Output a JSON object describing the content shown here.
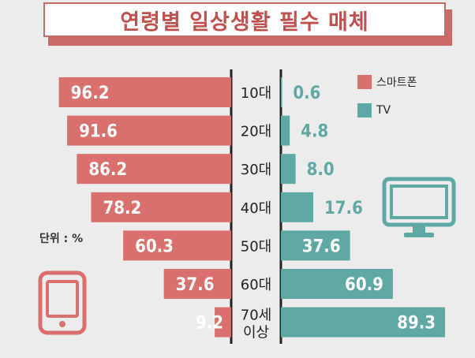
{
  "title": "연령별 일상생활 필수 매체",
  "unit": "단위 : %",
  "colors": {
    "smartphone": "#d9706d",
    "tv": "#5fa8a4",
    "title": "#c0504d"
  },
  "icons": {
    "smartphone": "smartphone-icon",
    "tv": "tv-icon"
  },
  "legend": {
    "smartphone": "스마트폰",
    "tv": "TV"
  },
  "chart_data": {
    "type": "bar",
    "title": "연령별 일상생활 필수 매체",
    "unit": "단위 : %",
    "categories": [
      "10대",
      "20대",
      "30대",
      "40대",
      "50대",
      "60대",
      "70세 이상"
    ],
    "series": [
      {
        "name": "스마트폰",
        "values": [
          96.2,
          91.6,
          86.2,
          78.2,
          60.3,
          37.6,
          9.2
        ]
      },
      {
        "name": "TV",
        "values": [
          0.6,
          4.8,
          8.0,
          17.6,
          37.6,
          60.9,
          89.3
        ]
      }
    ],
    "value_labels": {
      "스마트폰": [
        "96.2",
        "91.6",
        "86.2",
        "78.2",
        "60.3",
        "37.6",
        "9.2"
      ],
      "TV": [
        "0.6",
        "4.8",
        "8.0",
        "17.6",
        "37.6",
        "60.9",
        "89.3"
      ]
    },
    "xlim": [
      0,
      100
    ],
    "legend_position": "top-right",
    "grid": false
  }
}
